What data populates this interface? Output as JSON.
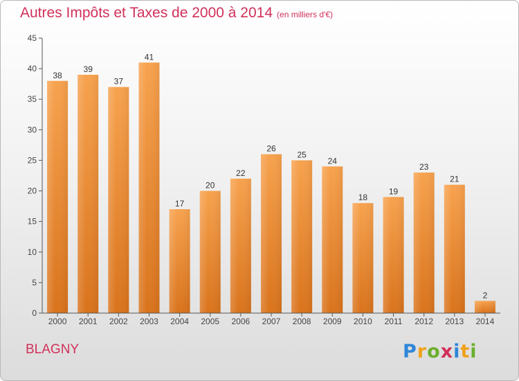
{
  "title": "Autres Impôts et Taxes de 2000 à 2014",
  "unit_note": "(en milliers d'€)",
  "town": "BLAGNY",
  "logo_text": "Proxiti",
  "colors": {
    "title": "#d1305a",
    "bar_light": "#f7a24e",
    "bar_dark": "#d9731c",
    "axis": "#555555"
  },
  "chart_data": {
    "type": "bar",
    "title": "Autres Impôts et Taxes de 2000 à 2014",
    "subtitle": "(en milliers d'€)",
    "categories": [
      "2000",
      "2001",
      "2002",
      "2003",
      "2004",
      "2005",
      "2006",
      "2007",
      "2008",
      "2009",
      "2010",
      "2011",
      "2012",
      "2013",
      "2014"
    ],
    "values": [
      38,
      39,
      37,
      41,
      17,
      20,
      22,
      26,
      25,
      24,
      18,
      19,
      23,
      21,
      2
    ],
    "ylim": [
      0,
      45
    ],
    "yticks": [
      0,
      5,
      10,
      15,
      20,
      25,
      30,
      35,
      40,
      45
    ],
    "xlabel": "",
    "ylabel": "",
    "grid": false,
    "data_labels": true
  }
}
